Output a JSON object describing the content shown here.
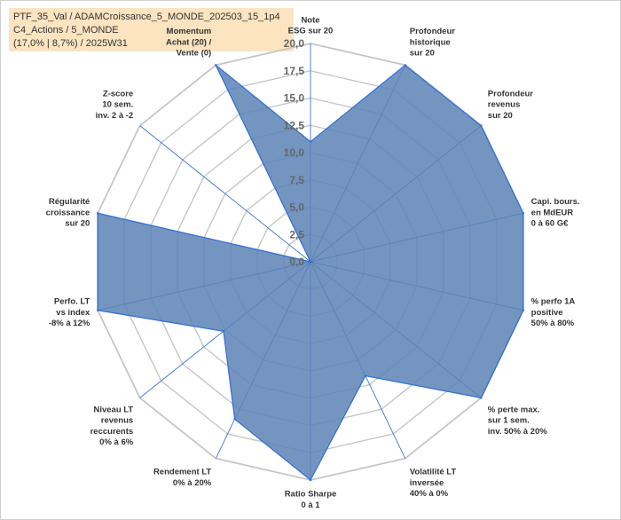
{
  "title_lines": [
    "PTF_35_Val / ADAMCroissance_5_MONDE_202503_15_1p4",
    "C4_Actions / 5_MONDE",
    "(17,0% | 8,7%) / 2025W31"
  ],
  "colors": {
    "fill": "#5b82b5",
    "stroke": "#2f6fd6",
    "grid": "#c6c6c6",
    "spoke": "#3a78d0",
    "title_bg": "#fce4c0",
    "highlight_label": "#b98a30"
  },
  "chart_data": {
    "type": "radar",
    "r_min": 0,
    "r_max": 20,
    "r_step": 2.5,
    "tick_labels": [
      "0,0",
      "2,5",
      "5,0",
      "7,5",
      "10,0",
      "12,5",
      "15,0",
      "17,5",
      "20,0"
    ],
    "axes": [
      {
        "label": [
          "Note",
          "ESG sur 20"
        ],
        "value": 11
      },
      {
        "label": [
          "Profondeur",
          "historique",
          "sur 20"
        ],
        "value": 20
      },
      {
        "label": [
          "Profondeur",
          "revenus",
          "sur 20"
        ],
        "value": 20
      },
      {
        "label": [
          "Capi. bours.",
          "en MdEUR",
          "0 à 60 G€"
        ],
        "value": 20
      },
      {
        "label": [
          "% perfo 1A",
          "positive",
          "50% à 80%"
        ],
        "value": 20
      },
      {
        "label": [
          "% perte max.",
          "sur 1 sem.",
          "inv. 50% à 20%"
        ],
        "value": 20
      },
      {
        "label": [
          "Volatilité LT",
          "inversée",
          "40% à 0%"
        ],
        "value": 11.6
      },
      {
        "label": [
          "Ratio Sharpe",
          "0 à 1"
        ],
        "value": 20
      },
      {
        "label": [
          "Rendement LT",
          "0% à 20%"
        ],
        "value": 16
      },
      {
        "label": [
          "Niveau LT",
          "revenus",
          "reccurents",
          "0% à 6%"
        ],
        "value": 10.2
      },
      {
        "label": [
          "Perfo. LT",
          "vs index",
          "-8% à 12%"
        ],
        "value": 20
      },
      {
        "label": [
          "Régularité",
          "croissance",
          "sur 20"
        ],
        "value": 20
      },
      {
        "label": [
          "Z-score",
          "10 sem.",
          "inv. 2 à -2"
        ],
        "value": 0
      },
      {
        "label": [
          "Momentum",
          "Achat (20) /",
          "Vente (0)"
        ],
        "value": 20
      }
    ],
    "highlighted_axis_label": "Momentum"
  }
}
